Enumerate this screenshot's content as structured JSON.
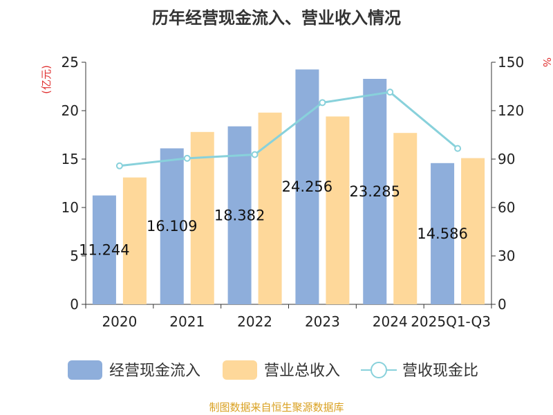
{
  "chart_data": {
    "type": "bar",
    "title": "历年经营现金流入、营业收入情况",
    "categories": [
      "2020",
      "2021",
      "2022",
      "2023",
      "2024",
      "2025Q1-Q3"
    ],
    "y_left_label": "(亿元)",
    "y_right_label": "%",
    "y_left_range": [
      0,
      25
    ],
    "y_left_ticks": [
      "0",
      "5",
      "10",
      "15",
      "20",
      "25"
    ],
    "y_right_range": [
      0,
      150
    ],
    "y_right_ticks": [
      "0",
      "30",
      "60",
      "90",
      "120",
      "150"
    ],
    "series": [
      {
        "name": "经营现金流入",
        "type": "bar",
        "axis": "left",
        "color": "#8eaedb",
        "values": [
          11.244,
          16.109,
          18.382,
          24.256,
          23.285,
          14.586
        ],
        "labels": [
          "11.244",
          "16.109",
          "18.382",
          "24.256",
          "23.285",
          "14.586"
        ]
      },
      {
        "name": "营业总收入",
        "type": "bar",
        "axis": "left",
        "color": "#fed89a",
        "values": [
          13.1,
          17.8,
          19.8,
          19.4,
          17.7,
          15.1
        ]
      },
      {
        "name": "营收现金比",
        "type": "line",
        "axis": "right",
        "color": "#88d1db",
        "values": [
          85.8,
          90.5,
          92.8,
          125.0,
          131.5,
          96.6
        ]
      }
    ],
    "legend_position": "bottom",
    "grid": false
  },
  "footer": "制图数据来自恒生聚源数据库"
}
